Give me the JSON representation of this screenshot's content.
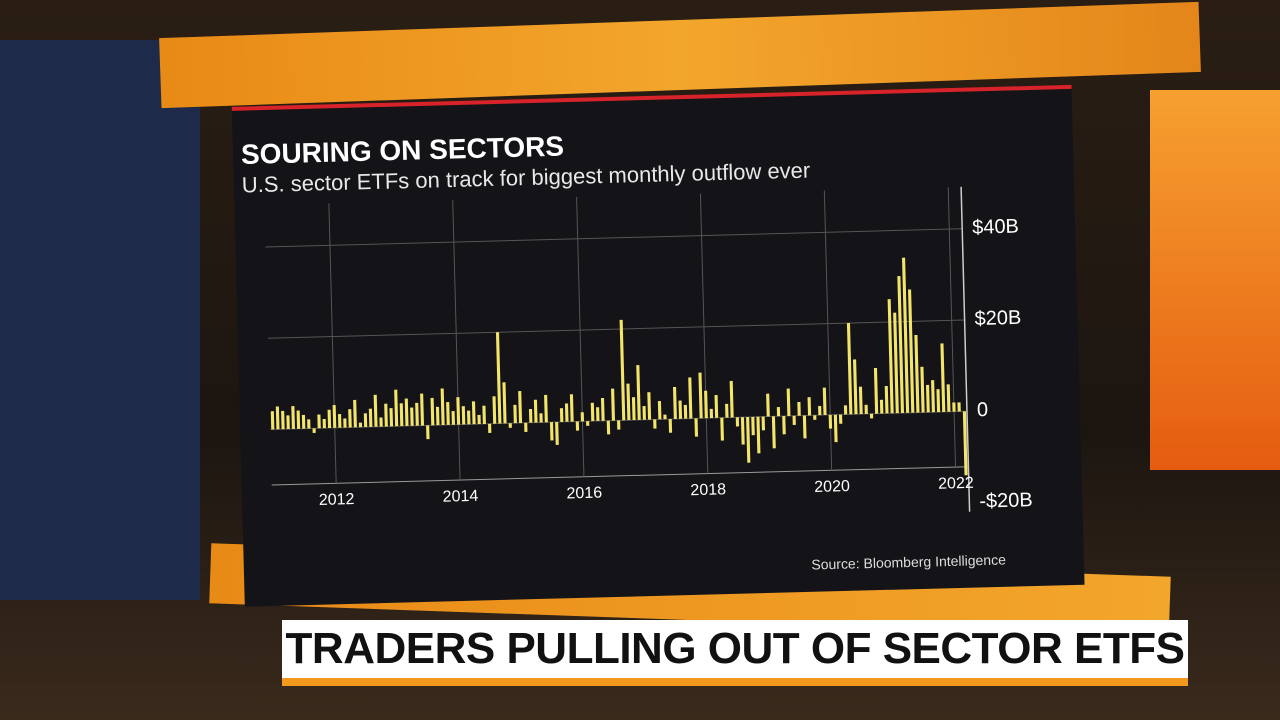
{
  "chart_data": {
    "type": "bar",
    "title": "SOURING ON SECTORS",
    "subtitle": "U.S. sector ETFs on track for biggest monthly outflow ever",
    "source": "Source: Bloomberg Intelligence",
    "color": "#f3e46a",
    "grid": true,
    "ylim": [
      -22,
      47
    ],
    "yticks": [
      {
        "value": -20,
        "label": "-$20B"
      },
      0,
      {
        "value": 20,
        "label": "$20B"
      },
      {
        "value": 40,
        "label": "$40B"
      }
    ],
    "categories": [
      null,
      null,
      null,
      null,
      null,
      null,
      null,
      null,
      null,
      null,
      null,
      null,
      "2012",
      null,
      null,
      null,
      null,
      null,
      null,
      null,
      null,
      null,
      null,
      null,
      null,
      null,
      null,
      null,
      null,
      null,
      null,
      null,
      null,
      null,
      null,
      null,
      "2014",
      null,
      null,
      null,
      null,
      null,
      null,
      null,
      null,
      null,
      null,
      null,
      null,
      null,
      null,
      null,
      null,
      null,
      null,
      null,
      null,
      null,
      null,
      null,
      "2016",
      null,
      null,
      null,
      null,
      null,
      null,
      null,
      null,
      null,
      null,
      null,
      null,
      null,
      null,
      null,
      null,
      null,
      null,
      null,
      null,
      null,
      null,
      null,
      "2018",
      null,
      null,
      null,
      null,
      null,
      null,
      null,
      null,
      null,
      null,
      null,
      null,
      null,
      null,
      null,
      null,
      null,
      null,
      null,
      null,
      null,
      null,
      null,
      "2020",
      null,
      null,
      null,
      null,
      null,
      null,
      null,
      null,
      null,
      null,
      null,
      null,
      null,
      null,
      null,
      null,
      null,
      null,
      null,
      null,
      null,
      null,
      null,
      "2022",
      null,
      null
    ],
    "values": [
      4,
      5,
      4,
      3,
      5,
      4,
      3,
      2,
      -1,
      3,
      2,
      4,
      5,
      3,
      2,
      4,
      6,
      1,
      3,
      4,
      7,
      2,
      5,
      4,
      8,
      5,
      6,
      4,
      5,
      7,
      -3,
      6,
      4,
      8,
      5,
      3,
      6,
      4,
      3,
      5,
      2,
      4,
      -2,
      6,
      20,
      9,
      -1,
      4,
      7,
      -2,
      3,
      5,
      2,
      6,
      -4,
      -5,
      3,
      4,
      6,
      -2,
      2,
      -1,
      4,
      3,
      5,
      -3,
      7,
      -2,
      22,
      8,
      5,
      12,
      3,
      6,
      -2,
      4,
      1,
      -3,
      7,
      4,
      3,
      9,
      -4,
      10,
      6,
      2,
      5,
      -5,
      3,
      8,
      -2,
      -6,
      -10,
      -4,
      -8,
      -3,
      5,
      -7,
      2,
      -4,
      6,
      -2,
      3,
      -5,
      4,
      -1,
      2,
      6,
      -3,
      -6,
      -2,
      2,
      20,
      12,
      6,
      2,
      -1,
      10,
      3,
      6,
      25,
      22,
      30,
      34,
      27,
      17,
      10,
      6,
      7,
      5,
      15,
      6,
      2,
      2,
      -14
    ]
  },
  "lower_third": {
    "headline": "TRADERS PULLING OUT OF SECTOR ETFS"
  }
}
